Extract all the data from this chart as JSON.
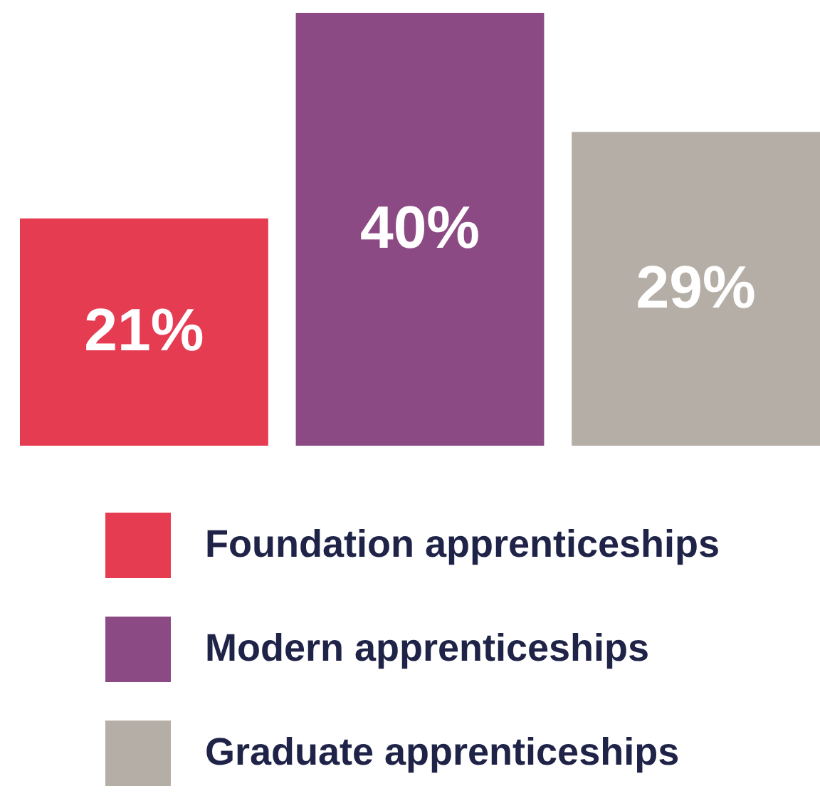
{
  "chart_data": {
    "type": "bar",
    "categories": [
      null,
      null,
      null
    ],
    "stacked": true,
    "series": [
      {
        "name": "Foundation apprenticeships",
        "color": "#e63c52",
        "values": [
          21,
          null,
          null
        ],
        "value_labels": [
          "21%",
          null,
          null
        ]
      },
      {
        "name": "Modern apprenticeships",
        "color": "#8c4a84",
        "values": [
          null,
          40,
          null
        ],
        "value_labels": [
          null,
          "40%",
          null
        ]
      },
      {
        "name": "Graduate apprenticeships",
        "color": "#b5aea6",
        "values": [
          null,
          null,
          29
        ],
        "value_labels": [
          null,
          null,
          "29%"
        ]
      }
    ],
    "legend": "bottom"
  }
}
